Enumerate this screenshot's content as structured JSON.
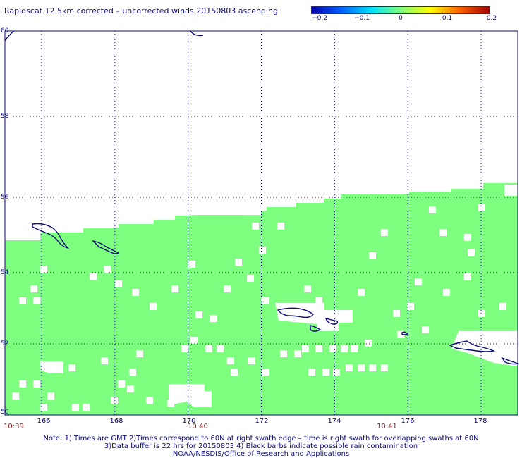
{
  "title": "Rapidscat 12.5km corrected – uncorrected winds 20150803 ascending",
  "colorbar": {
    "ticks": [
      "−0.2",
      "−0.1",
      "0",
      "0.1",
      "0.2"
    ],
    "colors": [
      "#0000aa",
      "#0060ff",
      "#00e0ff",
      "#7fff7f",
      "#ffff00",
      "#ff6000",
      "#a00000"
    ]
  },
  "map": {
    "lat_labels": [
      "60",
      "58",
      "56",
      "54",
      "52",
      "50"
    ],
    "lon_labels": [
      "166",
      "168",
      "170",
      "172",
      "174",
      "176",
      "178"
    ],
    "lat_range": [
      50,
      60
    ],
    "lon_range": [
      165,
      179
    ],
    "swath_color": "#7fff7f",
    "coast_color": "#0a0a78",
    "grid": "dotted"
  },
  "times": [
    "10:39",
    "10:40",
    "10:41"
  ],
  "notes": {
    "line1": "Note: 1) Times are GMT 2)Times correspond to 60N at right swath edge – time is right swath for overlapping swaths at 60N",
    "line2": "3)Data buffer is 22 hrs for 20150803 4) Black barbs indicate possible rain contamination",
    "line3": "NOAA/NESDIS/Office of Research and Applications"
  }
}
